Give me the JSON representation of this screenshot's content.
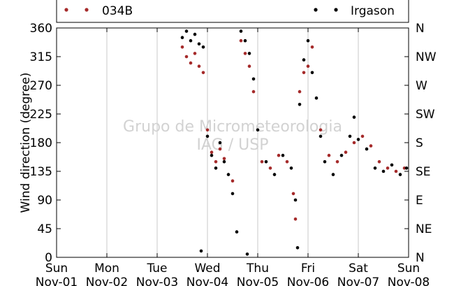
{
  "chart_data": {
    "type": "scatter",
    "title": "",
    "xlabel": "",
    "ylabel": "Wind direction (degree)",
    "ylim": [
      0,
      360
    ],
    "xlim": [
      "2015-11-01",
      "2015-11-08"
    ],
    "x_ticks": [
      {
        "day": "Sun",
        "date": "Nov-01"
      },
      {
        "day": "Mon",
        "date": "Nov-02"
      },
      {
        "day": "Tue",
        "date": "Nov-03"
      },
      {
        "day": "Wed",
        "date": "Nov-04"
      },
      {
        "day": "Thu",
        "date": "Nov-05"
      },
      {
        "day": "Fri",
        "date": "Nov-06"
      },
      {
        "day": "Sat",
        "date": "Nov-07"
      },
      {
        "day": "Sun",
        "date": "Nov-08"
      }
    ],
    "y_ticks": [
      "0",
      "45",
      "90",
      "135",
      "180",
      "225",
      "270",
      "315",
      "360"
    ],
    "y2_ticks": [
      "N",
      "NE",
      "E",
      "SE",
      "S",
      "SW",
      "W",
      "NW",
      "N"
    ],
    "grid": "vertical",
    "legend_position": "top",
    "watermark": [
      "Grupo de Micrometeorologia",
      "IAG / USP"
    ],
    "series": [
      {
        "name": "034B",
        "color": "#a52a2a",
        "points": [
          [
            "2015-11-03 12:00",
            330
          ],
          [
            "2015-11-03 14:00",
            315
          ],
          [
            "2015-11-03 16:00",
            305
          ],
          [
            "2015-11-03 18:00",
            320
          ],
          [
            "2015-11-03 20:00",
            300
          ],
          [
            "2015-11-03 22:00",
            290
          ],
          [
            "2015-11-04 00:00",
            200
          ],
          [
            "2015-11-04 02:00",
            165
          ],
          [
            "2015-11-04 04:00",
            150
          ],
          [
            "2015-11-04 06:00",
            170
          ],
          [
            "2015-11-04 08:00",
            155
          ],
          [
            "2015-11-04 12:00",
            120
          ],
          [
            "2015-11-04 16:00",
            340
          ],
          [
            "2015-11-04 18:00",
            320
          ],
          [
            "2015-11-04 20:00",
            300
          ],
          [
            "2015-11-04 22:00",
            260
          ],
          [
            "2015-11-05 02:00",
            150
          ],
          [
            "2015-11-05 06:00",
            140
          ],
          [
            "2015-11-05 10:00",
            160
          ],
          [
            "2015-11-05 14:00",
            150
          ],
          [
            "2015-11-05 17:00",
            100
          ],
          [
            "2015-11-05 18:00",
            60
          ],
          [
            "2015-11-05 20:00",
            260
          ],
          [
            "2015-11-05 22:00",
            290
          ],
          [
            "2015-11-06 00:00",
            300
          ],
          [
            "2015-11-06 02:00",
            330
          ],
          [
            "2015-11-06 06:00",
            200
          ],
          [
            "2015-11-06 10:00",
            160
          ],
          [
            "2015-11-06 14:00",
            150
          ],
          [
            "2015-11-06 18:00",
            165
          ],
          [
            "2015-11-06 22:00",
            180
          ],
          [
            "2015-11-07 02:00",
            190
          ],
          [
            "2015-11-07 06:00",
            175
          ],
          [
            "2015-11-07 10:00",
            150
          ],
          [
            "2015-11-07 14:00",
            140
          ],
          [
            "2015-11-07 18:00",
            135
          ],
          [
            "2015-11-07 22:00",
            140
          ]
        ]
      },
      {
        "name": "Irgason",
        "color": "#000000",
        "points": [
          [
            "2015-11-03 12:00",
            345
          ],
          [
            "2015-11-03 14:00",
            355
          ],
          [
            "2015-11-03 16:00",
            340
          ],
          [
            "2015-11-03 18:00",
            350
          ],
          [
            "2015-11-03 20:00",
            335
          ],
          [
            "2015-11-03 22:00",
            330
          ],
          [
            "2015-11-04 00:00",
            190
          ],
          [
            "2015-11-04 02:00",
            160
          ],
          [
            "2015-11-04 04:00",
            140
          ],
          [
            "2015-11-04 06:00",
            180
          ],
          [
            "2015-11-04 08:00",
            150
          ],
          [
            "2015-11-04 10:00",
            130
          ],
          [
            "2015-11-04 12:00",
            100
          ],
          [
            "2015-11-04 14:00",
            40
          ],
          [
            "2015-11-04 16:00",
            355
          ],
          [
            "2015-11-04 18:00",
            340
          ],
          [
            "2015-11-04 20:00",
            320
          ],
          [
            "2015-11-04 22:00",
            280
          ],
          [
            "2015-11-05 00:00",
            200
          ],
          [
            "2015-11-05 04:00",
            150
          ],
          [
            "2015-11-05 08:00",
            130
          ],
          [
            "2015-11-05 12:00",
            160
          ],
          [
            "2015-11-05 16:00",
            140
          ],
          [
            "2015-11-05 18:00",
            90
          ],
          [
            "2015-11-05 20:00",
            240
          ],
          [
            "2015-11-05 22:00",
            310
          ],
          [
            "2015-11-06 00:00",
            340
          ],
          [
            "2015-11-06 02:00",
            290
          ],
          [
            "2015-11-06 04:00",
            250
          ],
          [
            "2015-11-06 06:00",
            190
          ],
          [
            "2015-11-06 08:00",
            150
          ],
          [
            "2015-11-06 12:00",
            130
          ],
          [
            "2015-11-06 16:00",
            160
          ],
          [
            "2015-11-06 20:00",
            190
          ],
          [
            "2015-11-06 22:00",
            220
          ],
          [
            "2015-11-07 00:00",
            185
          ],
          [
            "2015-11-07 04:00",
            170
          ],
          [
            "2015-11-07 08:00",
            140
          ],
          [
            "2015-11-07 12:00",
            135
          ],
          [
            "2015-11-07 16:00",
            145
          ],
          [
            "2015-11-07 20:00",
            130
          ],
          [
            "2015-11-07 23:00",
            140
          ],
          [
            "2015-11-03 21:00",
            10
          ],
          [
            "2015-11-04 19:00",
            5
          ],
          [
            "2015-11-05 19:00",
            15
          ]
        ]
      }
    ]
  }
}
